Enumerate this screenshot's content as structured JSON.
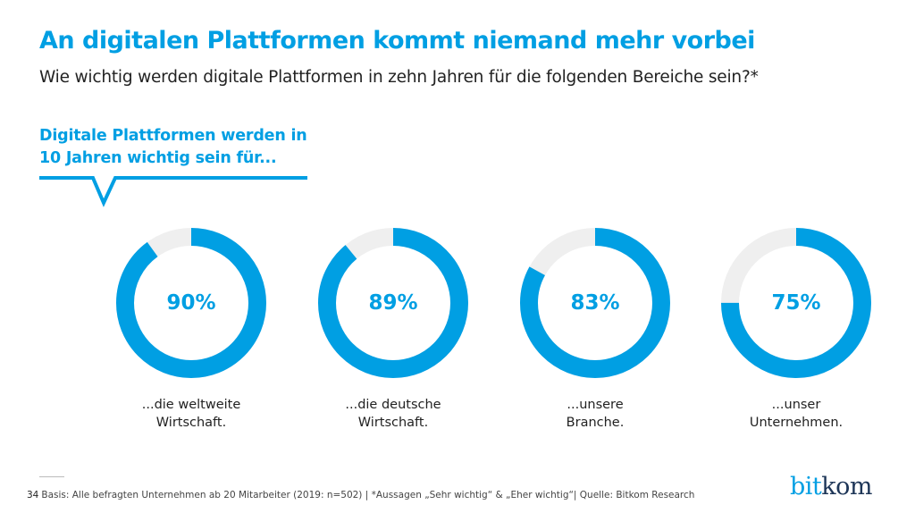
{
  "title": "An digitalen Plattformen kommt niemand mehr vorbei",
  "subtitle": "Wie wichtig werden digitale Plattformen in zehn Jahren für die folgenden Bereiche sein?*",
  "callout": {
    "line1": "Digitale Plattformen werden in",
    "line2": "10 Jahren wichtig sein für..."
  },
  "colors": {
    "accent": "#009fe3",
    "track": "#efefef"
  },
  "chart_data": {
    "type": "pie",
    "subtype": "donut",
    "unit": "%",
    "items": [
      {
        "label_line1": "...die weltweite",
        "label_line2": "Wirtschaft.",
        "value": 90,
        "value_label": "90%"
      },
      {
        "label_line1": "...die deutsche",
        "label_line2": "Wirtschaft.",
        "value": 89,
        "value_label": "89%"
      },
      {
        "label_line1": "...unsere",
        "label_line2": "Branche.",
        "value": 83,
        "value_label": "83%"
      },
      {
        "label_line1": "...unser",
        "label_line2": "Unternehmen.",
        "value": 75,
        "value_label": "75%"
      }
    ]
  },
  "footer": {
    "page": "34",
    "text": "Basis: Alle befragten Unternehmen ab 20 Mitarbeiter (2019: n=502) | *Aussagen „Sehr wichtig“ & „Eher wichtig“| Quelle: Bitkom Research"
  },
  "logo": {
    "part1": "bit",
    "part2": "kom"
  }
}
